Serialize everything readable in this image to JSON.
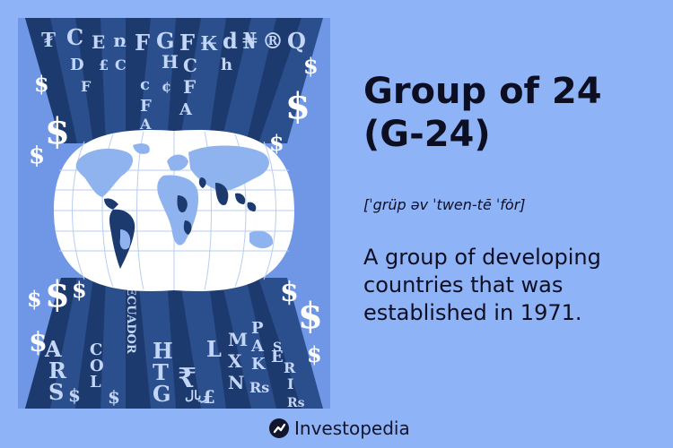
{
  "term": {
    "title": "Group of 24 (G-24)",
    "pronunciation": "[ˈgrüp əv ˈtwen-tē ˈfȯr]",
    "definition": "A group of developing countries that was established in 1971."
  },
  "illustration": {
    "background_color": "#6f97e6",
    "band_color": "#2a4f8c",
    "band_dark_color": "#1d3a6e",
    "globe_color": "#ffffff",
    "land_color": "#8fb3ee",
    "highlight_land_color": "#1d3a6e",
    "top_symbols": [
      "₮",
      "C",
      "E",
      "ռ",
      "F",
      "G",
      "F",
      "₭",
      "d",
      "₦",
      "®",
      "Q",
      "D",
      "£",
      "C",
      "H",
      "C",
      "h",
      "F",
      "c",
      "F",
      "¢",
      "F",
      "A",
      "A"
    ],
    "bottom_symbols": [
      "A",
      "R",
      "S",
      "C",
      "O",
      "L",
      "ECUADOR",
      "H",
      "T",
      "G",
      "₹",
      "ريال",
      "L",
      "M",
      "X",
      "N",
      "P",
      "A",
      "K",
      "E",
      "S",
      "R",
      "I",
      "Rs",
      "$",
      "$",
      "£",
      "Rs"
    ],
    "dollar_sign": "$"
  },
  "brand": {
    "name": "Investopedia",
    "logo_icon": "investopedia-logo-icon"
  }
}
